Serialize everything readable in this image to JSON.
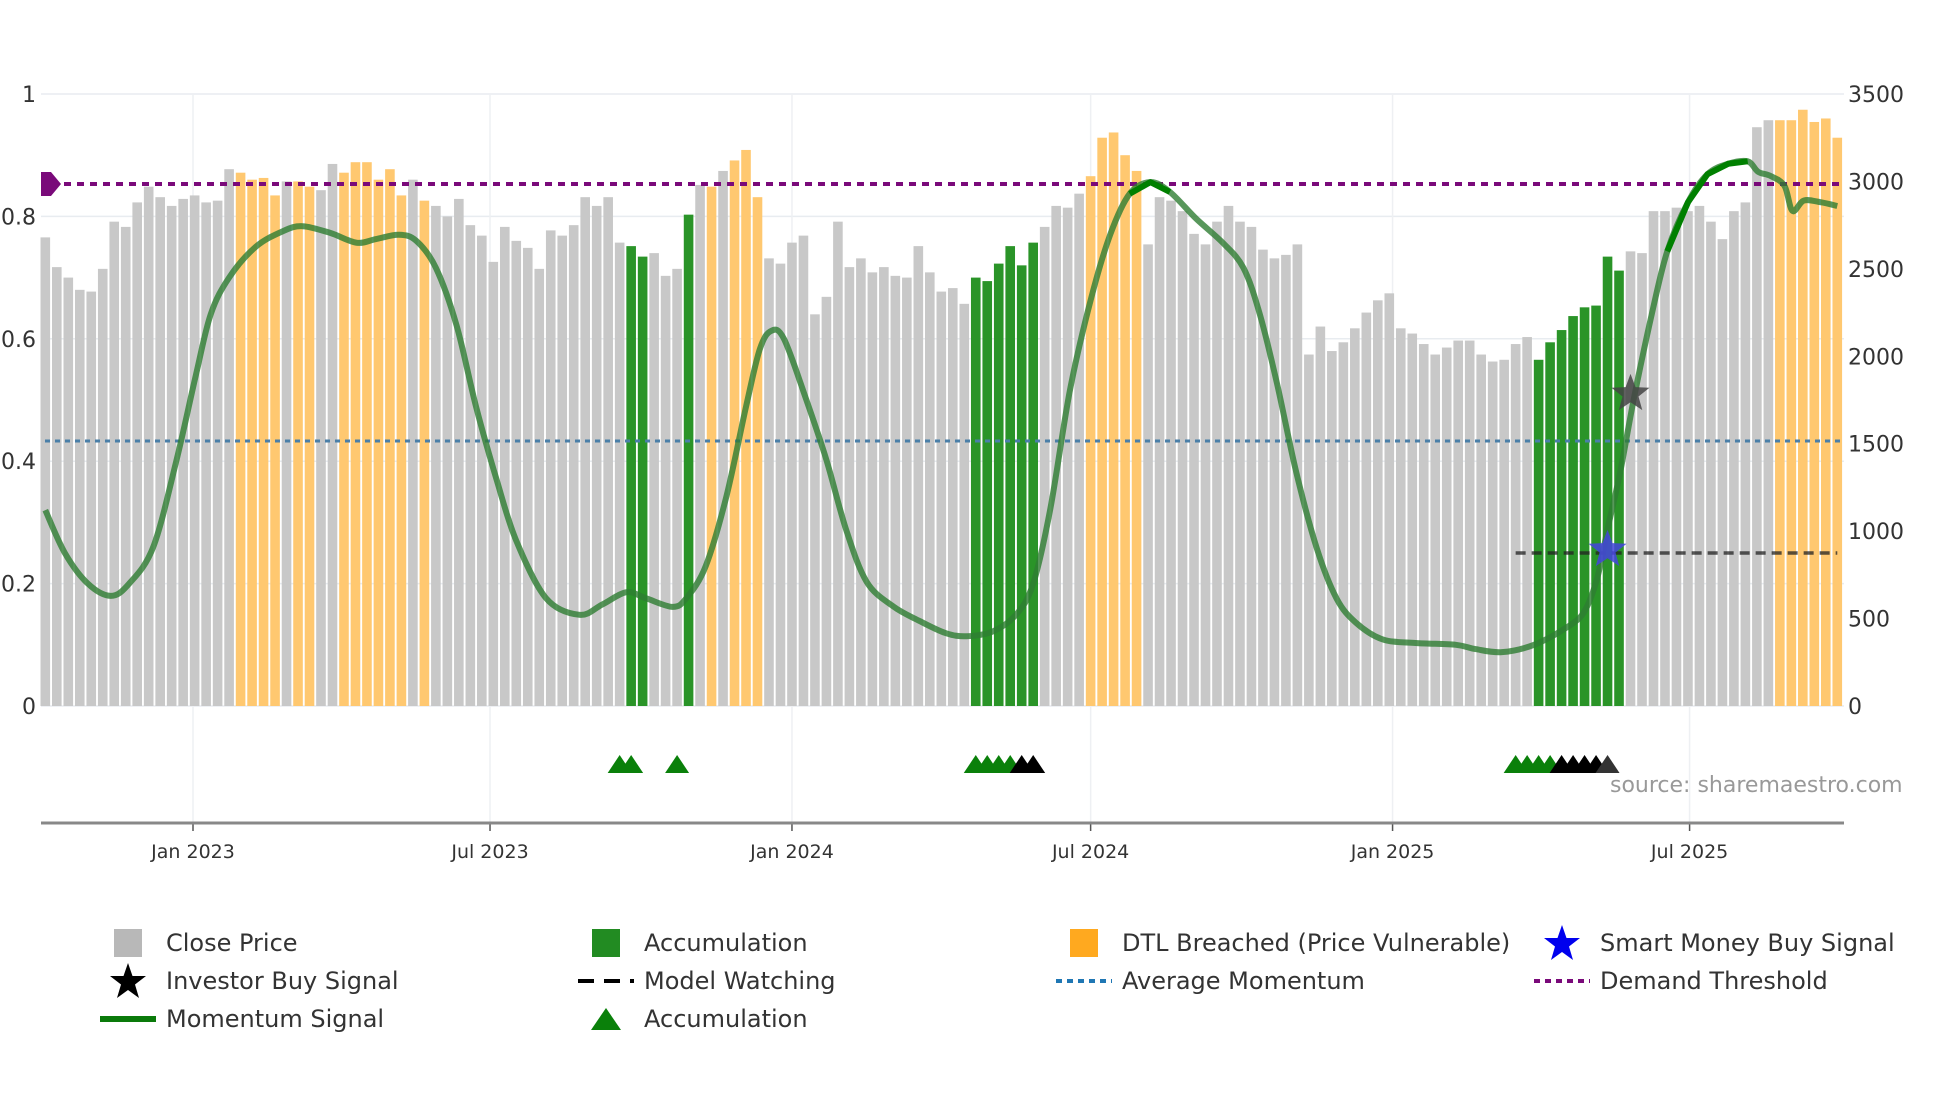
{
  "chart_data": {
    "type": "bar",
    "title": "",
    "x_start": "2022-10-03",
    "x_interval_days": 7,
    "x_ticks": [
      "Jan 2023",
      "Jul 2023",
      "Jan 2024",
      "Jul 2024",
      "Jan 2025",
      "Jul 2025"
    ],
    "x_tick_dates": [
      "2023-01-01",
      "2023-07-01",
      "2024-01-01",
      "2024-07-01",
      "2025-01-01",
      "2025-07-01"
    ],
    "y_left": {
      "ylim": [
        0,
        1
      ],
      "ticks": [
        "0",
        "0.2",
        "0.4",
        "0.6",
        "0.8",
        "1"
      ],
      "tick_values": [
        0,
        0.2,
        0.4,
        0.6,
        0.8,
        1
      ]
    },
    "y_right": {
      "ylim": [
        0,
        3500
      ],
      "ticks": [
        "0",
        "500",
        "1000",
        "1500",
        "2000",
        "2500",
        "3000",
        "3500"
      ],
      "tick_values": [
        0,
        500,
        1000,
        1500,
        2000,
        2500,
        3000,
        3500
      ]
    },
    "grid": true,
    "legend_position": "bottom",
    "colors": {
      "close": "#c8c8c8",
      "accumulation": "#2a9428",
      "dtl": "#ffc870",
      "momentum": "#2e7d32",
      "momentum_strong": "#008000",
      "avg_momentum": "#4a7fa8",
      "demand": "#7a0a7a",
      "investor_star": "#444444",
      "smart_star": "#4444dd",
      "model_watch": "#222222",
      "tri_green": "#0a800a",
      "tri_black": "#000000"
    },
    "close_price": [
      2680,
      2510,
      2450,
      2380,
      2370,
      2500,
      2770,
      2740,
      2880,
      2970,
      2910,
      2860,
      2900,
      2920,
      2880,
      2890,
      3070,
      3050,
      3010,
      3020,
      2920,
      3000,
      3000,
      2970,
      2950,
      3100,
      3050,
      3110,
      3110,
      3010,
      3070,
      2920,
      3010,
      2890,
      2860,
      2800,
      2900,
      2750,
      2690,
      2540,
      2740,
      2660,
      2620,
      2500,
      2720,
      2690,
      2750,
      2910,
      2860,
      2910,
      2650,
      2630,
      2570,
      2590,
      2460,
      2500,
      2810,
      2980,
      2970,
      3060,
      3120,
      3180,
      2910,
      2560,
      2530,
      2650,
      2690,
      2240,
      2340,
      2770,
      2510,
      2560,
      2480,
      2510,
      2460,
      2450,
      2630,
      2480,
      2370,
      2390,
      2300,
      2450,
      2430,
      2530,
      2630,
      2520,
      2650,
      2740,
      2860,
      2850,
      2930,
      3030,
      3250,
      3280,
      3150,
      3060,
      2640,
      2910,
      2890,
      2830,
      2700,
      2640,
      2770,
      2860,
      2770,
      2740,
      2610,
      2560,
      2580,
      2640,
      2010,
      2170,
      2030,
      2080,
      2160,
      2250,
      2320,
      2360,
      2160,
      2130,
      2070,
      2010,
      2050,
      2090,
      2090,
      2010,
      1970,
      1980,
      2070,
      2110,
      1980,
      2080,
      2150,
      2230,
      2280,
      2290,
      2570,
      2490,
      2600,
      2590,
      2830,
      2830,
      2850,
      2830,
      2860,
      2770,
      2670,
      2830,
      2880,
      3310,
      3350,
      3350,
      3350,
      3410,
      3340,
      3360,
      3250
    ],
    "bar_category": "cccccccccccccccccdddd cdd ccdddddd cd ccccccccccccccccc aacccacdcdddccccccccccccccccccaaaaaaccccdddddccccccccccccccccccccccccccccccccccaaaaaaaacccccccccccccdddddddd",
    "bar_category_legend": {
      "c": "Close Price",
      "a": "Accumulation",
      "d": "DTL Breached (Price Vulnerable)"
    },
    "momentum_keypoints": [
      [
        1,
        0.32
      ],
      [
        2.7,
        0.25
      ],
      [
        4.7,
        0.2
      ],
      [
        6.7,
        0.18
      ],
      [
        8.3,
        0.2
      ],
      [
        10.4,
        0.26
      ],
      [
        12.4,
        0.4
      ],
      [
        14.1,
        0.54
      ],
      [
        15.4,
        0.64
      ],
      [
        17,
        0.7
      ],
      [
        19.3,
        0.75
      ],
      [
        21.7,
        0.776
      ],
      [
        23.4,
        0.784
      ],
      [
        25.8,
        0.773
      ],
      [
        28.1,
        0.757
      ],
      [
        29.8,
        0.763
      ],
      [
        31.8,
        0.77
      ],
      [
        33.3,
        0.76
      ],
      [
        35,
        0.716
      ],
      [
        36.8,
        0.622
      ],
      [
        38.5,
        0.489
      ],
      [
        40.3,
        0.369
      ],
      [
        42,
        0.27
      ],
      [
        44.6,
        0.176
      ],
      [
        47.5,
        0.149
      ],
      [
        49.5,
        0.166
      ],
      [
        51.6,
        0.186
      ],
      [
        53.3,
        0.176
      ],
      [
        55.6,
        0.162
      ],
      [
        56.8,
        0.176
      ],
      [
        58.5,
        0.229
      ],
      [
        60.3,
        0.343
      ],
      [
        62,
        0.489
      ],
      [
        63.2,
        0.583
      ],
      [
        64.2,
        0.613
      ],
      [
        65.3,
        0.6
      ],
      [
        67.2,
        0.503
      ],
      [
        69,
        0.402
      ],
      [
        70.7,
        0.289
      ],
      [
        72.5,
        0.203
      ],
      [
        74.8,
        0.163
      ],
      [
        77.1,
        0.139
      ],
      [
        79.4,
        0.119
      ],
      [
        81.2,
        0.114
      ],
      [
        83.5,
        0.122
      ],
      [
        85.5,
        0.149
      ],
      [
        87,
        0.2
      ],
      [
        88.5,
        0.323
      ],
      [
        90.2,
        0.516
      ],
      [
        92,
        0.663
      ],
      [
        93.7,
        0.77
      ],
      [
        95.4,
        0.837
      ],
      [
        97.2,
        0.856
      ],
      [
        98.9,
        0.84
      ],
      [
        101.2,
        0.796
      ],
      [
        103.5,
        0.757
      ],
      [
        105.3,
        0.716
      ],
      [
        106.7,
        0.642
      ],
      [
        108.2,
        0.529
      ],
      [
        109.9,
        0.382
      ],
      [
        111.7,
        0.257
      ],
      [
        113.4,
        0.176
      ],
      [
        115.1,
        0.136
      ],
      [
        117.4,
        0.109
      ],
      [
        120.3,
        0.103
      ],
      [
        123.8,
        0.1
      ],
      [
        125.5,
        0.093
      ],
      [
        127.8,
        0.088
      ],
      [
        130.6,
        0.1
      ],
      [
        133.5,
        0.129
      ],
      [
        135,
        0.155
      ],
      [
        136.1,
        0.209
      ],
      [
        137,
        0.289
      ],
      [
        138.1,
        0.382
      ],
      [
        139.3,
        0.503
      ],
      [
        140.8,
        0.636
      ],
      [
        142.2,
        0.743
      ],
      [
        144,
        0.823
      ],
      [
        145.7,
        0.869
      ],
      [
        147.5,
        0.886
      ],
      [
        149.2,
        0.89
      ],
      [
        150.1,
        0.873
      ],
      [
        151.2,
        0.866
      ],
      [
        152.4,
        0.85
      ],
      [
        153.1,
        0.809
      ],
      [
        154.1,
        0.826
      ],
      [
        155.6,
        0.823
      ],
      [
        157,
        0.817
      ]
    ],
    "momentum_strong_ranges": [
      [
        94,
        101
      ],
      [
        142,
        150
      ]
    ],
    "average_momentum": 0.433,
    "demand_threshold": 0.853,
    "investor_buy_signal": {
      "week": 139,
      "value": 0.51
    },
    "smart_money_buy_signal": {
      "week": 137,
      "value": 0.255
    },
    "model_watching": {
      "from_week": 129,
      "to_week": 157,
      "value": 0.25
    },
    "accumulation_triangles": [
      {
        "week": 51,
        "color": "green"
      },
      {
        "week": 52,
        "color": "green"
      },
      {
        "week": 56,
        "color": "green"
      },
      {
        "week": 82,
        "color": "green"
      },
      {
        "week": 83,
        "color": "green"
      },
      {
        "week": 84,
        "color": "green"
      },
      {
        "week": 85,
        "color": "green"
      },
      {
        "week": 86,
        "color": "black"
      },
      {
        "week": 87,
        "color": "black"
      },
      {
        "week": 129,
        "color": "green"
      },
      {
        "week": 130,
        "color": "green"
      },
      {
        "week": 131,
        "color": "green"
      },
      {
        "week": 132,
        "color": "green"
      },
      {
        "week": 133,
        "color": "black"
      },
      {
        "week": 134,
        "color": "black"
      },
      {
        "week": 135,
        "color": "black"
      },
      {
        "week": 136,
        "color": "black"
      },
      {
        "week": 137,
        "color": "dark"
      }
    ],
    "source": "source: sharemaestro.com",
    "legend": [
      {
        "label": "Close Price",
        "symbol": "square",
        "color": "#b8b8b8"
      },
      {
        "label": "Accumulation",
        "symbol": "square",
        "color": "#228b22"
      },
      {
        "label": "DTL Breached (Price Vulnerable)",
        "symbol": "square",
        "color": "#ffa91f"
      },
      {
        "label": "Smart Money Buy Signal",
        "symbol": "star",
        "color": "#0000ee"
      },
      {
        "label": "Investor Buy Signal",
        "symbol": "star",
        "color": "#000000"
      },
      {
        "label": "Model Watching",
        "symbol": "dash",
        "color": "#000000"
      },
      {
        "label": "Average Momentum",
        "symbol": "dot",
        "color": "#1f77b4"
      },
      {
        "label": "Demand Threshold",
        "symbol": "dot",
        "color": "#7a0a7a"
      },
      {
        "label": "Momentum Signal",
        "symbol": "line",
        "color": "#0a7a0a"
      },
      {
        "label": "Accumulation",
        "symbol": "triangle",
        "color": "#0a800a"
      }
    ]
  }
}
